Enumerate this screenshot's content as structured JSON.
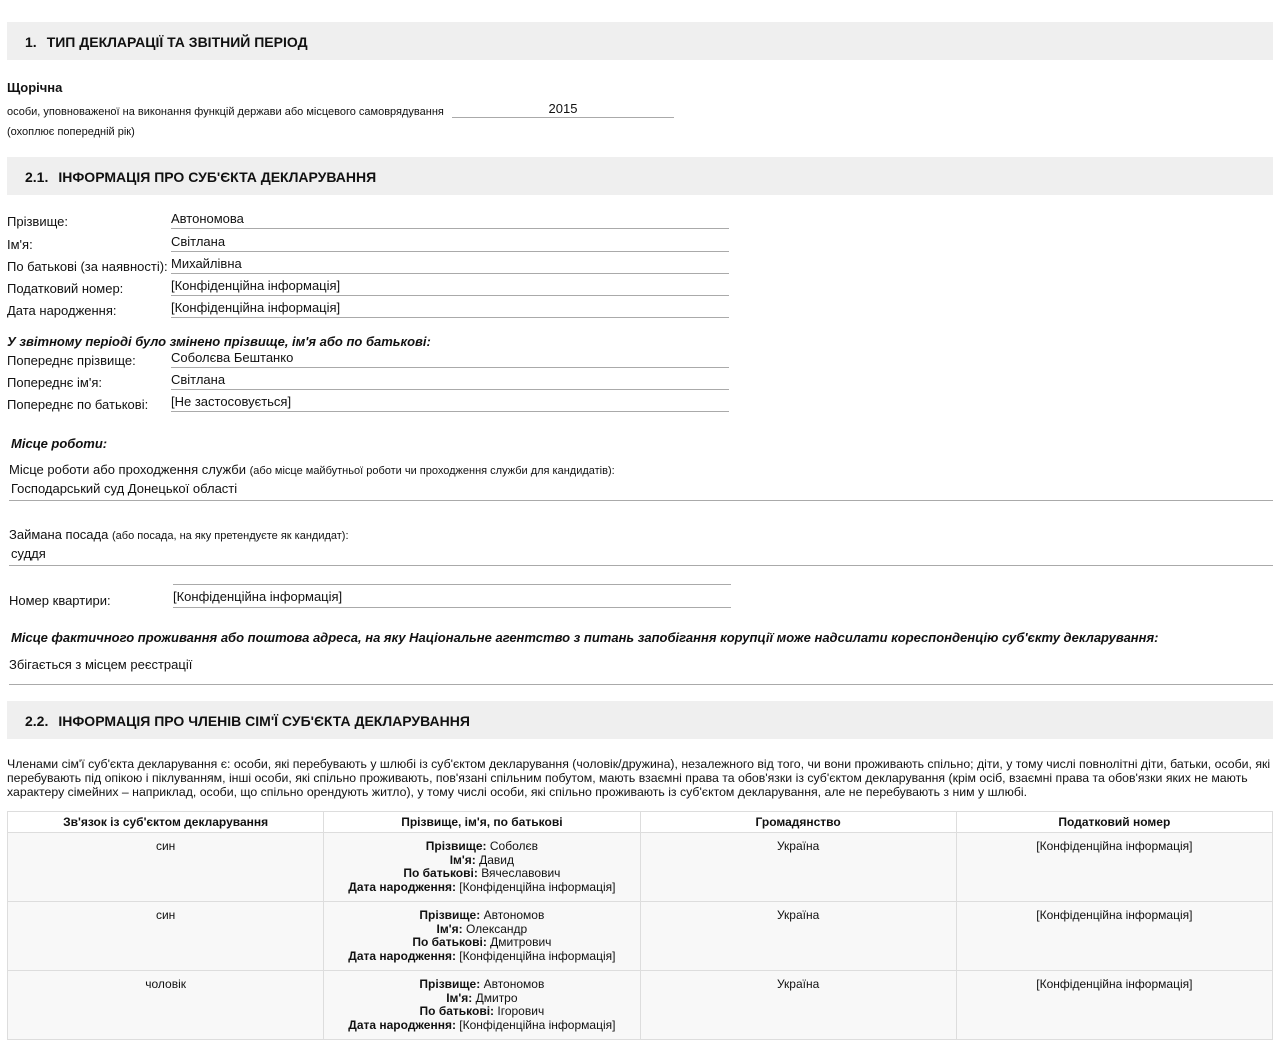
{
  "s1": {
    "num": "1.",
    "title": "ТИП ДЕКЛАРАЦІЇ ТА ЗВІТНИЙ ПЕРІОД",
    "type": "Щорічна",
    "subject": "особи, уповноваженої на виконання функцій держави або місцевого самоврядування",
    "year": "2015",
    "note": "(охоплює попередній рік)"
  },
  "s21": {
    "num": "2.1.",
    "title": "ІНФОРМАЦІЯ ПРО СУБ'ЄКТА ДЕКЛАРУВАННЯ",
    "fields": [
      {
        "label": "Прізвище:",
        "value": "Автономова"
      },
      {
        "label": "Ім'я:",
        "value": "Світлана"
      },
      {
        "label": "По батькові (за наявності):",
        "value": "Михайлівна"
      },
      {
        "label": "Податковий номер:",
        "value": "[Конфіденційна інформація]"
      },
      {
        "label": "Дата народження:",
        "value": "[Конфіденційна інформація]"
      }
    ],
    "changed_title": "У звітному періоді було змінено прізвище, ім'я або по батькові:",
    "prev": [
      {
        "label": "Попереднє прізвище:",
        "value": "Соболєва Бештанко"
      },
      {
        "label": "Попереднє ім'я:",
        "value": "Світлана"
      },
      {
        "label": "Попереднє по батькові:",
        "value": "[Не застосовується]"
      }
    ],
    "work_title": "Місце роботи:",
    "work_label": "Місце роботи або проходження служби",
    "work_hint": "(або місце майбутньої роботи чи проходження служби для кандидатів):",
    "work_value": "Господарський суд Донецької області",
    "pos_label": "Займана посада",
    "pos_hint": "(або посада, на яку претендуєте як кандидат):",
    "pos_value": "суддя",
    "apt_label": "Номер квартири:",
    "apt_value": "[Конфіденційна інформація]",
    "addr_title": "Місце фактичного проживання або поштова адреса, на яку Національне агентство з питань запобігання корупції може надсилати кореспонденцію суб'єкту декларування:",
    "addr_value": "Збігається з місцем реєстрації"
  },
  "s22": {
    "num": "2.2.",
    "title": "ІНФОРМАЦІЯ ПРО ЧЛЕНІВ СІМ'Ї СУБ'ЄКТА ДЕКЛАРУВАННЯ",
    "intro": "Членами сім'ї суб'єкта декларування є: особи, які перебувають у шлюбі із суб'єктом декларування (чоловік/дружина), незалежного від того, чи вони проживають спільно; діти, у тому числі повнолітні діти, батьки, особи, які перебувають під опікою і піклуванням, інші особи, які спільно проживають, пов'язані спільним побутом, мають взаємні права та обов'язки із суб'єктом декларування (крім осіб, взаємні права та обов'язки яких не мають характеру сімейних – наприклад, особи, що спільно орендують житло), у тому числі особи, які спільно проживають із суб'єктом декларування, але не перебувають з ним у шлюбі.",
    "headers": [
      "Зв'язок із суб'єктом декларування",
      "Прізвище, ім'я, по батькові",
      "Громадянство",
      "Податковий номер"
    ],
    "labels": {
      "surname": "Прізвище:",
      "name": "Ім'я:",
      "patronymic": "По батькові:",
      "birth": "Дата народження:"
    },
    "rows": [
      {
        "relation": "син",
        "surname": "Соболєв",
        "name": "Давид",
        "patronymic": "Вячеславович",
        "birth": "[Конфіденційна інформація]",
        "citizenship": "Україна",
        "tax": "[Конфіденційна інформація]"
      },
      {
        "relation": "син",
        "surname": "Автономов",
        "name": "Олександр",
        "patronymic": "Дмитрович",
        "birth": "[Конфіденційна інформація]",
        "citizenship": "Україна",
        "tax": "[Конфіденційна інформація]"
      },
      {
        "relation": "чоловік",
        "surname": "Автономов",
        "name": "Дмитро",
        "patronymic": "Ігорович",
        "birth": "[Конфіденційна інформація]",
        "citizenship": "Україна",
        "tax": "[Конфіденційна інформація]"
      }
    ]
  }
}
